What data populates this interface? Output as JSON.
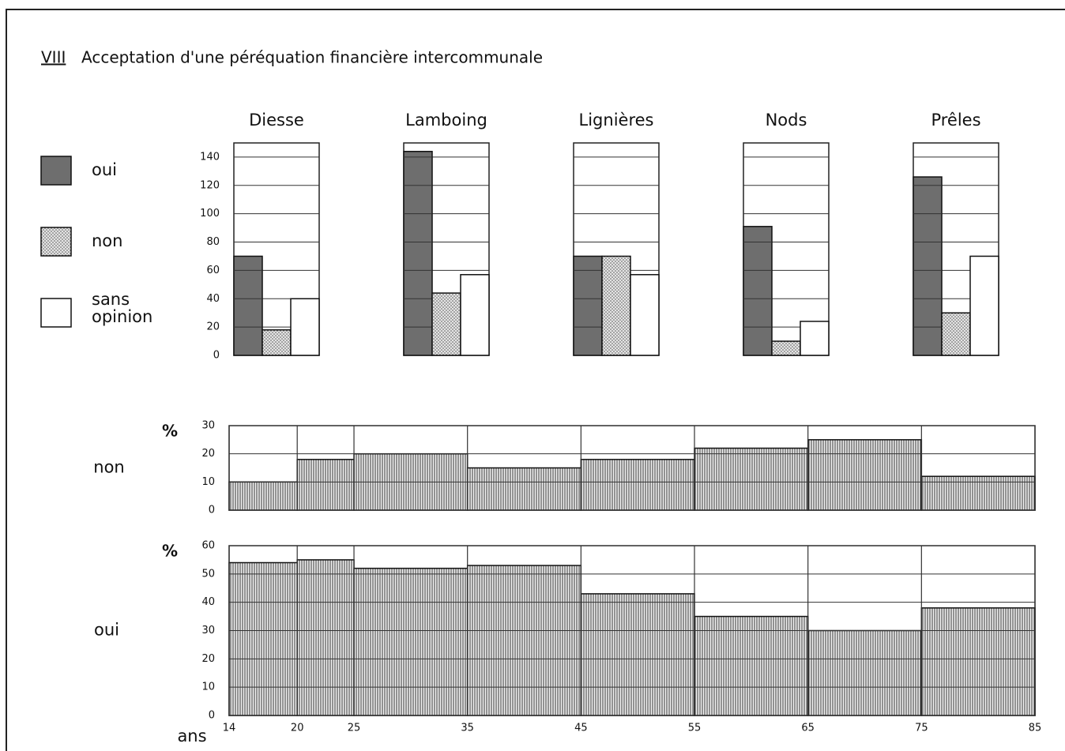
{
  "header": {
    "number": "VIII",
    "title": "Acceptation d'une péréquation financière intercommunale"
  },
  "chart_data": [
    {
      "type": "bar",
      "categories": [
        "Diesse",
        "Lamboing",
        "Lignières",
        "Nods",
        "Prêles"
      ],
      "series": [
        {
          "name": "oui",
          "color": "#6e6e6e",
          "values": [
            70,
            144,
            70,
            91,
            126
          ]
        },
        {
          "name": "non",
          "color": "#e4e4e4",
          "pattern": "dots",
          "values": [
            18,
            44,
            70,
            10,
            30
          ]
        },
        {
          "name": "sans opinion",
          "color": "#ffffff",
          "values": [
            40,
            57,
            57,
            24,
            70
          ]
        }
      ],
      "ylim": [
        0,
        150
      ],
      "yticks": [
        0,
        20,
        40,
        60,
        80,
        100,
        120,
        140
      ],
      "grid": true,
      "legend": "left"
    },
    {
      "type": "histogram",
      "title": "non",
      "ylabel": "%",
      "color": "#555555",
      "pattern": "vertical-hatch",
      "bins": [
        14,
        20,
        25,
        35,
        45,
        55,
        65,
        75,
        85
      ],
      "values": [
        10,
        18,
        20,
        15,
        18,
        22,
        25,
        12
      ],
      "xlim": [
        14,
        85
      ],
      "ylim": [
        0,
        30
      ],
      "yticks": [
        0,
        10,
        20,
        30
      ],
      "grid": true
    },
    {
      "type": "histogram",
      "title": "oui",
      "ylabel": "%",
      "xlabel": "ans",
      "color": "#555555",
      "pattern": "vertical-hatch",
      "bins": [
        14,
        20,
        25,
        35,
        45,
        55,
        65,
        75,
        85
      ],
      "values": [
        54,
        55,
        52,
        53,
        43,
        35,
        30,
        38
      ],
      "xlim": [
        14,
        85
      ],
      "ylim": [
        0,
        60
      ],
      "yticks": [
        0,
        10,
        20,
        30,
        40,
        50,
        60
      ],
      "xticks": [
        14,
        20,
        25,
        35,
        45,
        55,
        65,
        75,
        85
      ],
      "grid": true
    }
  ]
}
